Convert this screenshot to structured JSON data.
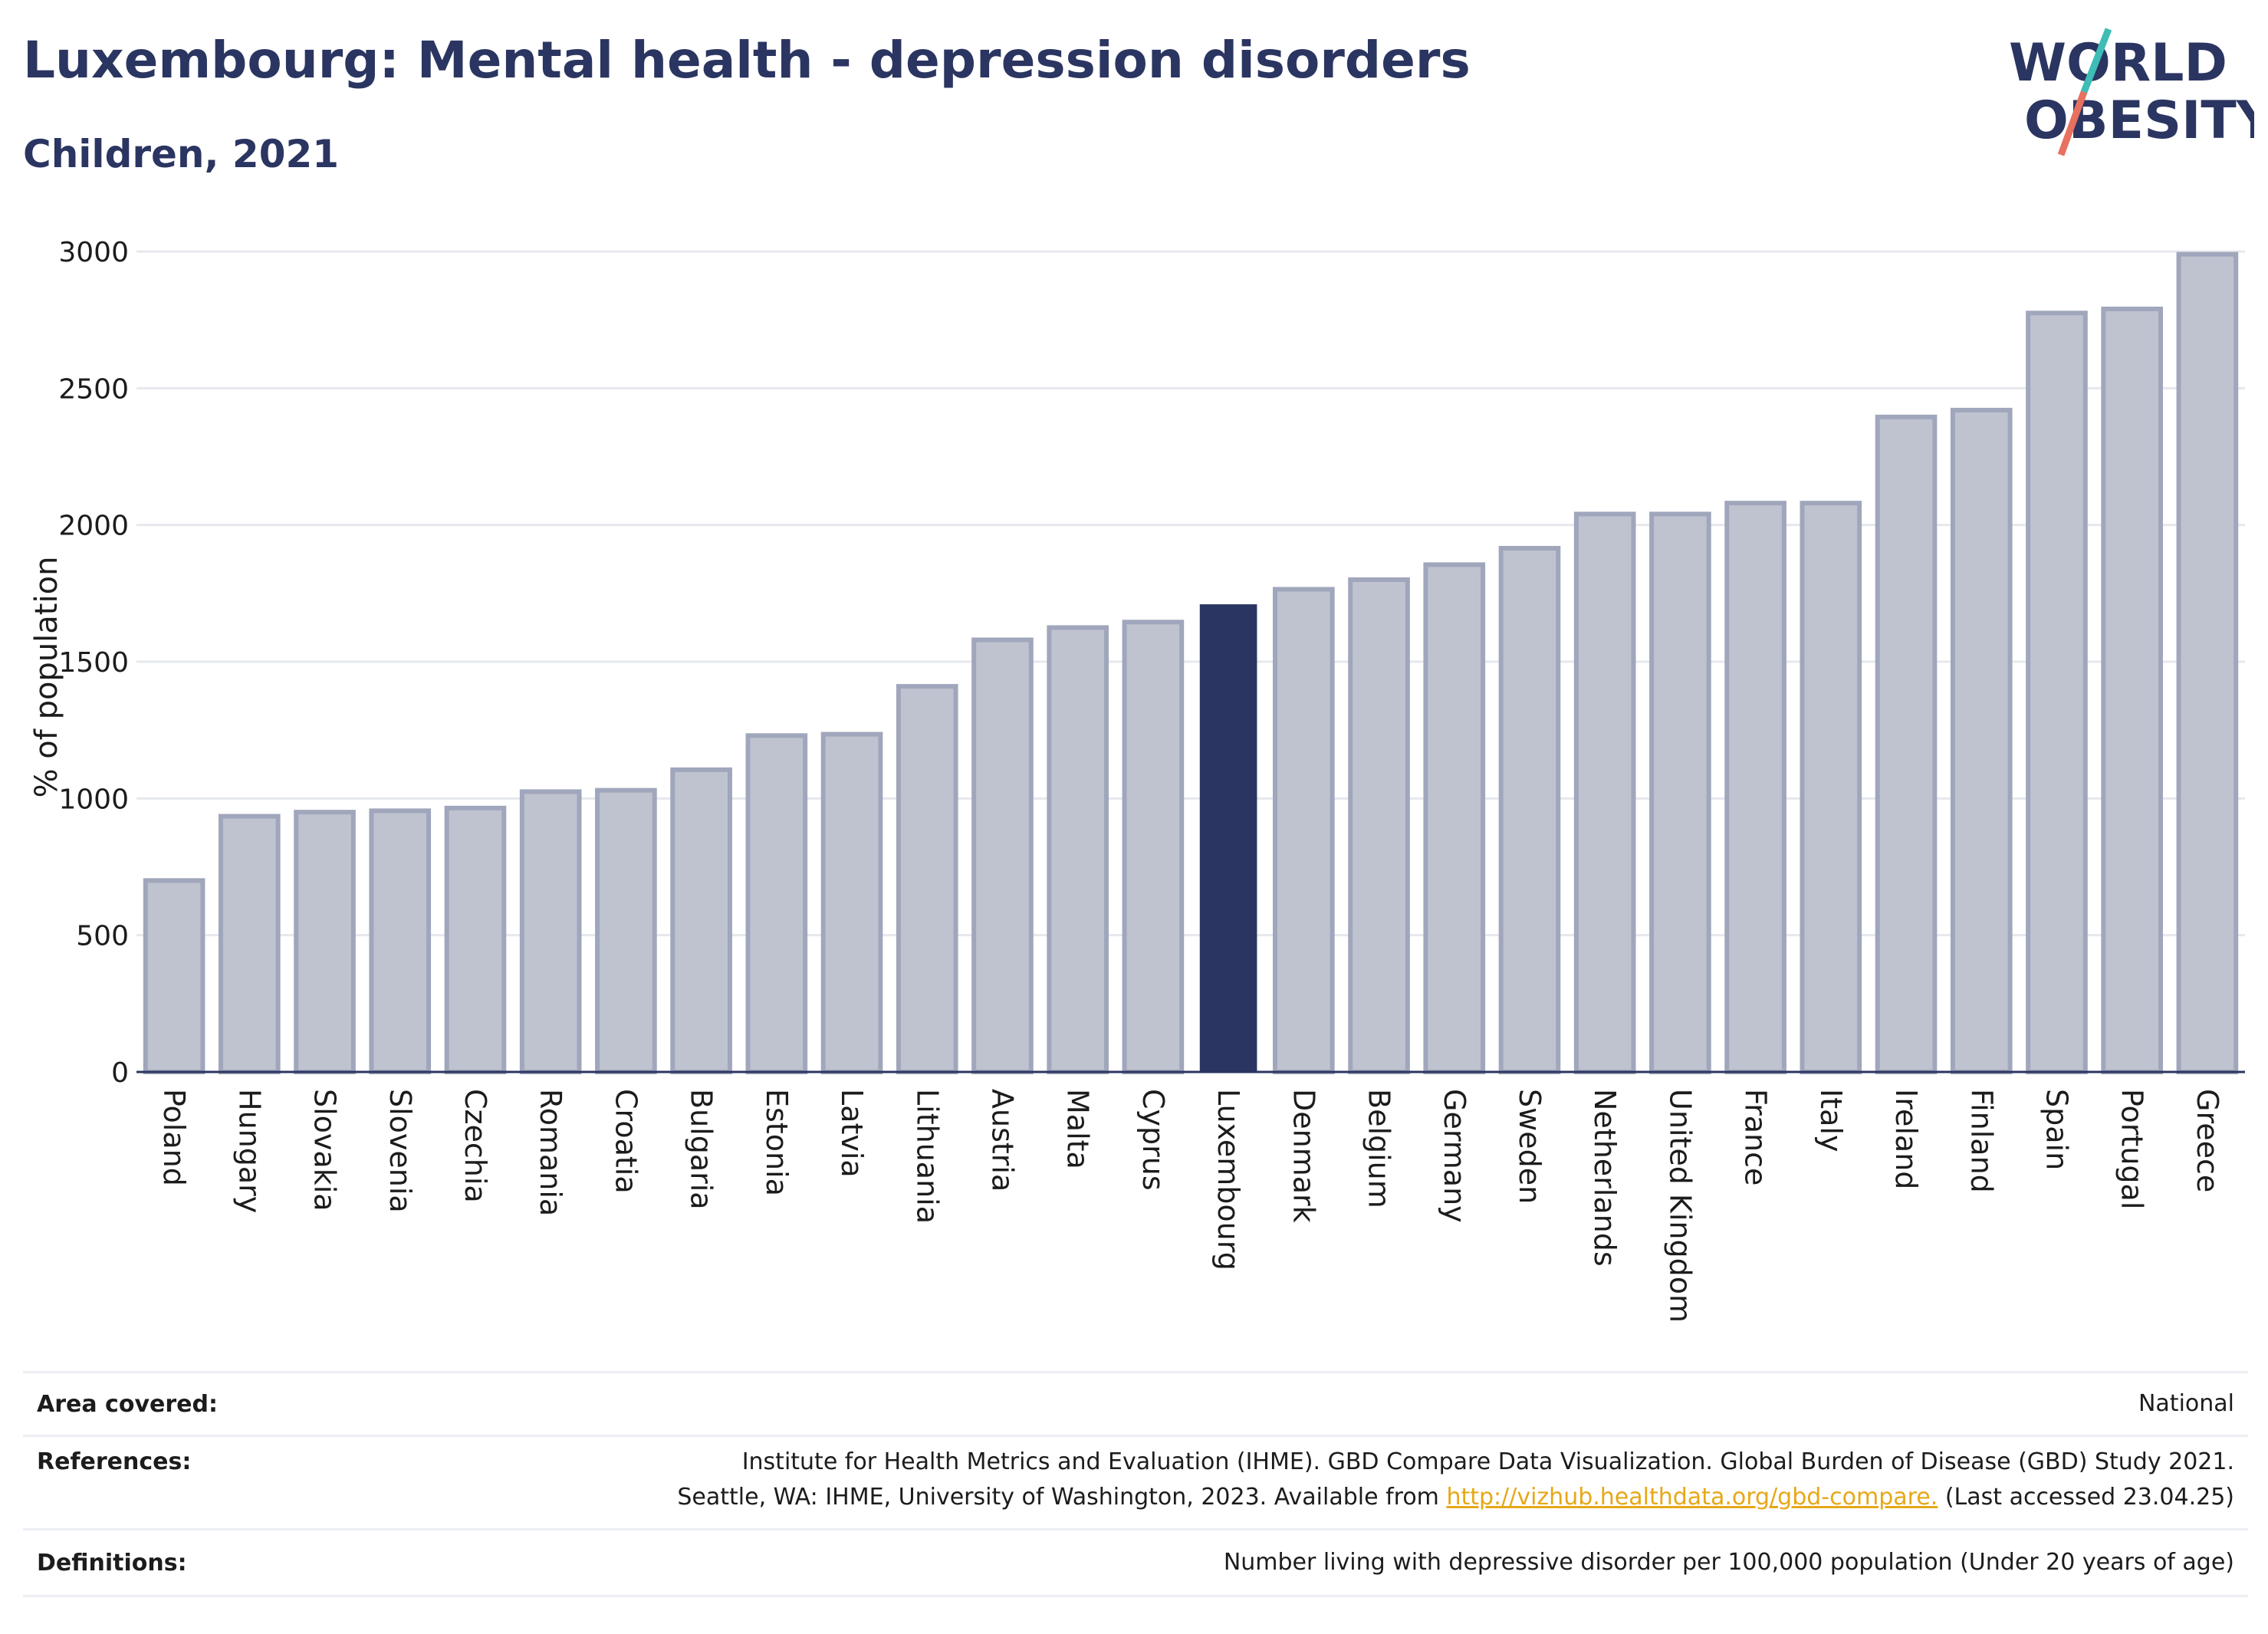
{
  "header": {
    "title": "Luxembourg: Mental health - depression disorders",
    "subtitle": "Children, 2021"
  },
  "logo": {
    "line1": "WORLD",
    "line2": "OBESITY",
    "slash_colors": [
      "#3dbdb5",
      "#e8705f"
    ]
  },
  "colors": {
    "highlight": "#2b3561",
    "bar_fill": "#bfc3d0",
    "bar_stroke": "#a0a6bb",
    "grid": "#e6e8ee",
    "axis": "#2b3561"
  },
  "chart_data": {
    "type": "bar",
    "title": "",
    "xlabel": "",
    "ylabel": "% of population",
    "ylim": [
      0,
      3000
    ],
    "yticks": [
      0,
      500,
      1000,
      1500,
      2000,
      2500,
      3000
    ],
    "grid": true,
    "highlight": "Luxembourg",
    "categories": [
      "Poland",
      "Hungary",
      "Slovakia",
      "Slovenia",
      "Czechia",
      "Romania",
      "Croatia",
      "Bulgaria",
      "Estonia",
      "Latvia",
      "Lithuania",
      "Austria",
      "Malta",
      "Cyprus",
      "Luxembourg",
      "Denmark",
      "Belgium",
      "Germany",
      "Sweden",
      "Netherlands",
      "United Kingdom",
      "France",
      "Italy",
      "Ireland",
      "Finland",
      "Spain",
      "Portugal",
      "Greece"
    ],
    "values": [
      700,
      935,
      950,
      955,
      965,
      1025,
      1030,
      1105,
      1230,
      1235,
      1410,
      1580,
      1625,
      1645,
      1710,
      1765,
      1800,
      1855,
      1915,
      2040,
      2040,
      2080,
      2080,
      2395,
      2420,
      2775,
      2790,
      2990
    ]
  },
  "info": {
    "area_label": "Area covered:",
    "area_value": "National",
    "references_label": "References:",
    "references_line1": "Institute for Health Metrics and Evaluation (IHME). GBD Compare Data Visualization. Global Burden of Disease (GBD) Study 2021.",
    "references_line2_pre": "Seattle, WA: IHME, University of Washington, 2023. Available from ",
    "references_link": "http://vizhub.healthdata.org/gbd-compare.",
    "references_line2_post": " (Last accessed 23.04.25)",
    "definitions_label": "Definitions:",
    "definitions_value": "Number living with depressive disorder per 100,000 population (Under 20 years of age)"
  }
}
